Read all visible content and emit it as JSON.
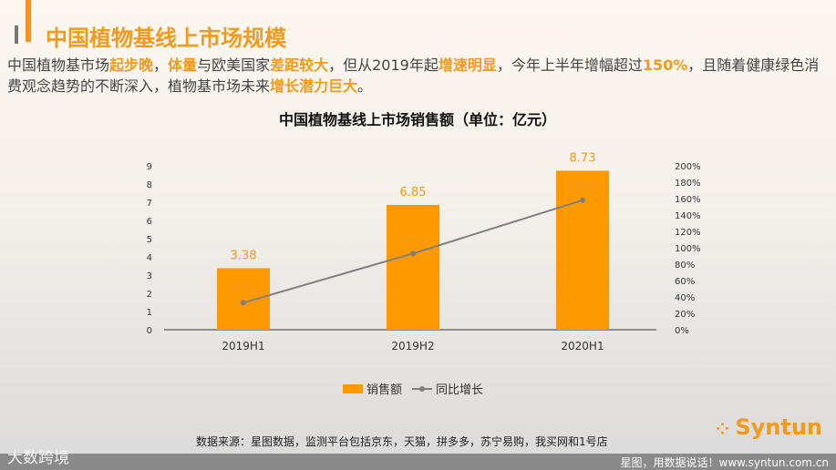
{
  "header": {
    "title": "中国植物基线上市场规模"
  },
  "paragraph": [
    {
      "t": "中国植物基市场",
      "b": false
    },
    {
      "t": "起步晚",
      "b": true
    },
    {
      "t": "，",
      "b": false
    },
    {
      "t": "体量",
      "b": true
    },
    {
      "t": "与欧美国家",
      "b": false
    },
    {
      "t": "差距较大",
      "b": true
    },
    {
      "t": "，但从2019年起",
      "b": false
    },
    {
      "t": "增速明显",
      "b": true
    },
    {
      "t": "，今年上半年增幅超过",
      "b": false
    },
    {
      "t": "150%",
      "b": true
    },
    {
      "t": "，且随着健康绿色消费观念趋势的不断深入，植物基市场未来",
      "b": false
    },
    {
      "t": "增长潜力巨大",
      "b": true
    },
    {
      "t": "。",
      "b": false
    }
  ],
  "chart_data": {
    "type": "bar",
    "title": "中国植物基线上市场销售额（单位：亿元）",
    "categories": [
      "2019H1",
      "2019H2",
      "2020H1"
    ],
    "series": [
      {
        "name": "销售额",
        "type": "bar",
        "axis": "left",
        "values": [
          3.38,
          6.85,
          8.73
        ],
        "labels": [
          "3.38",
          "6.85",
          "8.73"
        ],
        "color": "#ff9900"
      },
      {
        "name": "同比增长",
        "type": "line",
        "axis": "right",
        "values": [
          33,
          93,
          158
        ],
        "labels": [
          "33%",
          "93%",
          "158%"
        ],
        "color": "#7f7f7f"
      }
    ],
    "ylim": [
      0,
      9
    ],
    "yticks": [
      "0",
      "1",
      "2",
      "3",
      "4",
      "5",
      "6",
      "7",
      "8",
      "9"
    ],
    "y2lim": [
      0,
      200
    ],
    "y2ticks": [
      "0%",
      "20%",
      "40%",
      "60%",
      "80%",
      "100%",
      "120%",
      "140%",
      "160%",
      "180%",
      "200%"
    ],
    "legend": "bottom"
  },
  "footer": {
    "source": "数据来源：星图数据，监测平台包括京东，天猫，拼多多，苏宁易购，我买网和1号店",
    "logo": "Syntun",
    "slogan": "星图，用数据说话！www.syntun.com.cn",
    "watermark": "大数跨境"
  }
}
